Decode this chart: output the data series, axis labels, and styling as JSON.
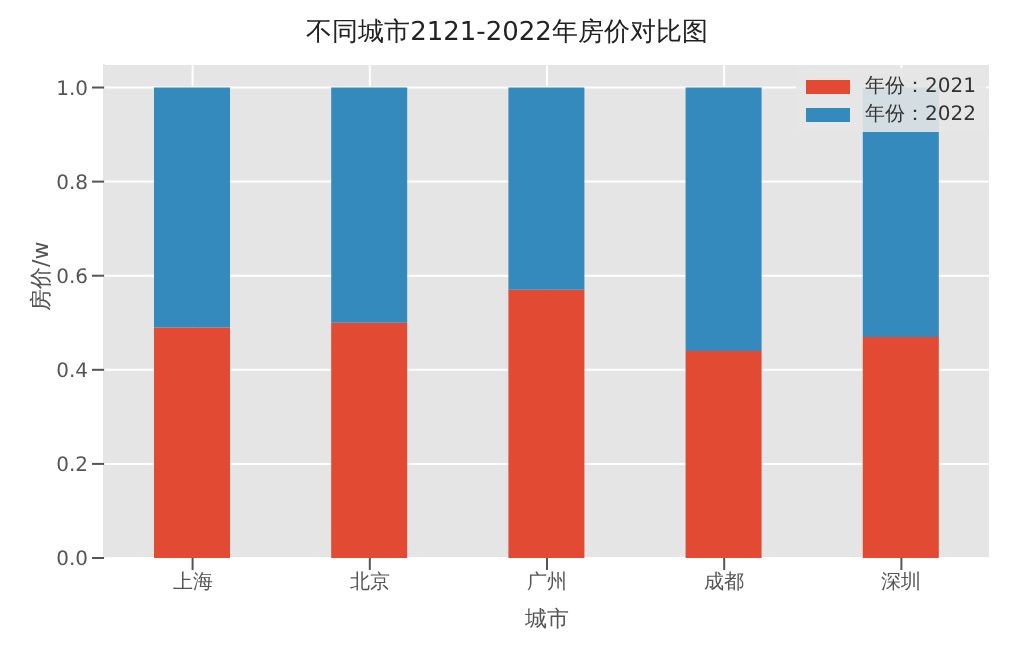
{
  "chart_data": {
    "type": "bar",
    "title": "不同城市2121-2022年房价对比图",
    "xlabel": "城市",
    "ylabel": "房价/w",
    "categories": [
      "上海",
      "北京",
      "广州",
      "成都",
      "深圳"
    ],
    "series": [
      {
        "name": "年份：2021",
        "color": "#e24a33",
        "values": [
          0.49,
          0.5,
          0.57,
          0.44,
          0.47
        ]
      },
      {
        "name": "年份：2022",
        "color": "#348abd",
        "values": [
          0.51,
          0.5,
          0.43,
          0.56,
          0.53
        ]
      }
    ],
    "stacked": true,
    "ylim": [
      0,
      1.05
    ],
    "yticks": [
      {
        "value": 0,
        "label": "0.0"
      },
      0.2,
      0.4,
      0.6,
      0.8,
      {
        "value": 1,
        "label": "1.0"
      }
    ],
    "grid": true,
    "legend": "top right"
  }
}
